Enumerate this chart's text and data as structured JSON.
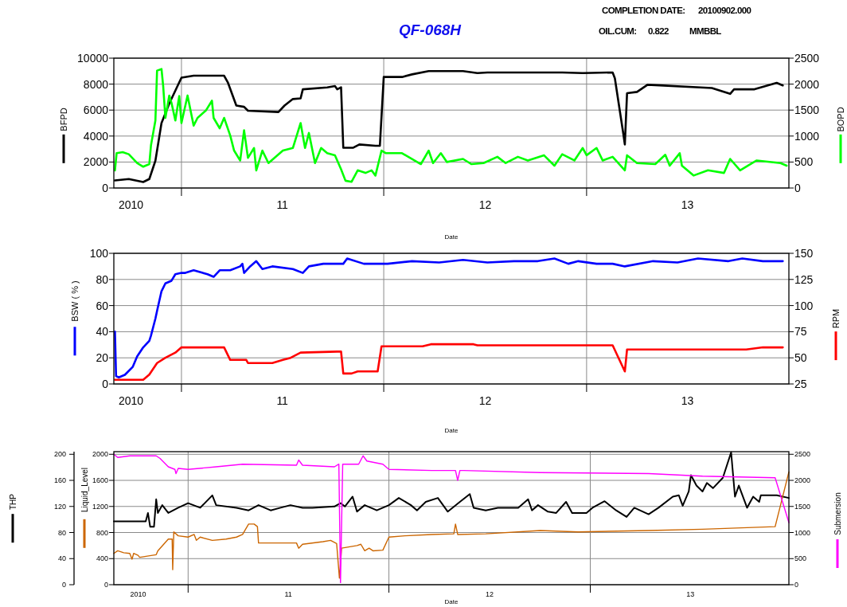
{
  "chart_data": [
    {
      "type": "line",
      "title": "QF-068H",
      "annotations": [
        "COMPLETION DATE:",
        "20100902.000",
        "OIL.CUM:",
        "0.822",
        "MMBBL"
      ],
      "xlabel": "Date",
      "ylabel": "BFPD",
      "y2label": "BOPD",
      "xlim": [
        "2010-09-01",
        "2014-01-01"
      ],
      "xticks": [
        {
          "value": "2010-10-02",
          "label": "2010"
        },
        {
          "value": "2011-01-01",
          "label": null
        },
        {
          "value": "2011-07-02",
          "label": "11"
        },
        {
          "value": "2012-01-01",
          "label": null
        },
        {
          "value": "2012-07-02",
          "label": "12"
        },
        {
          "value": "2013-01-01",
          "label": null
        },
        {
          "value": "2013-07-02",
          "label": "13"
        }
      ],
      "ylim": [
        0,
        10000
      ],
      "yticks": [
        0,
        2000,
        4000,
        6000,
        8000,
        10000
      ],
      "y2lim": [
        0,
        2500
      ],
      "y2ticks": [
        0,
        500,
        1000,
        1500,
        2000,
        2500
      ],
      "grid": true,
      "series": [
        {
          "color": "#000000",
          "axis": "y",
          "x": [
            "2010-09-03",
            "2010-09-28",
            "2010-10-24",
            "2010-11-04",
            "2010-11-15",
            "2010-11-26",
            "2010-12-10",
            "2010-12-21",
            "2011-01-01",
            "2011-01-23",
            "2011-02-28",
            "2011-03-19",
            "2011-03-26",
            "2011-04-10",
            "2011-04-24",
            "2011-05-01",
            "2011-06-25",
            "2011-07-06",
            "2011-07-21",
            "2011-08-04",
            "2011-08-08",
            "2011-09-21",
            "2011-10-05",
            "2011-10-09",
            "2011-10-16",
            "2011-10-20",
            "2011-11-07",
            "2011-11-18",
            "2011-12-17",
            "2011-12-25",
            "2012-01-01",
            "2012-02-03",
            "2012-02-21",
            "2012-03-22",
            "2012-05-23",
            "2012-06-18",
            "2012-07-06",
            "2012-11-18",
            "2012-12-25",
            "2013-02-17",
            "2013-02-21",
            "2013-03-08",
            "2013-03-11",
            "2013-03-15",
            "2013-04-02",
            "2013-04-21",
            "2013-08-15",
            "2013-09-17",
            "2013-09-24",
            "2013-10-31",
            "2013-12-10",
            "2013-12-21"
          ],
          "values": [
            580,
            690,
            460,
            690,
            2100,
            5000,
            6500,
            7500,
            8500,
            8650,
            8650,
            8650,
            8100,
            6350,
            6250,
            5950,
            5850,
            6350,
            6850,
            6900,
            7600,
            7750,
            7850,
            7600,
            7750,
            3100,
            3100,
            3350,
            3250,
            3250,
            8550,
            8550,
            8750,
            9000,
            9000,
            8850,
            8900,
            8900,
            8850,
            8900,
            8450,
            4250,
            3350,
            7300,
            7400,
            7950,
            7700,
            7250,
            7600,
            7600,
            8100,
            7900
          ]
        },
        {
          "color": "#00ff00",
          "axis": "y2",
          "x": [
            "2010-09-03",
            "2010-09-06",
            "2010-09-17",
            "2010-09-28",
            "2010-10-13",
            "2010-10-24",
            "2010-11-04",
            "2010-11-07",
            "2010-11-15",
            "2010-11-18",
            "2010-11-26",
            "2010-11-29",
            "2010-12-03",
            "2010-12-10",
            "2010-12-14",
            "2010-12-21",
            "2010-12-28",
            "2011-01-01",
            "2011-01-12",
            "2011-01-23",
            "2011-01-30",
            "2011-02-14",
            "2011-02-25",
            "2011-02-28",
            "2011-03-11",
            "2011-03-19",
            "2011-03-30",
            "2011-04-06",
            "2011-04-17",
            "2011-04-24",
            "2011-05-01",
            "2011-05-12",
            "2011-05-16",
            "2011-05-27",
            "2011-06-07",
            "2011-07-03",
            "2011-07-21",
            "2011-08-04",
            "2011-08-12",
            "2011-08-19",
            "2011-08-30",
            "2011-09-10",
            "2011-09-21",
            "2011-10-05",
            "2011-10-16",
            "2011-10-24",
            "2011-11-04",
            "2011-11-15",
            "2011-11-29",
            "2011-12-10",
            "2011-12-17",
            "2011-12-28",
            "2012-01-05",
            "2012-02-03",
            "2012-03-08",
            "2012-03-22",
            "2012-03-30",
            "2012-04-13",
            "2012-04-24",
            "2012-05-23",
            "2012-06-07",
            "2012-06-29",
            "2012-07-24",
            "2012-08-08",
            "2012-08-30",
            "2012-09-17",
            "2012-10-16",
            "2012-11-04",
            "2012-11-18",
            "2012-12-10",
            "2012-12-25",
            "2013-01-01",
            "2013-01-19",
            "2013-01-30",
            "2013-02-17",
            "2013-03-11",
            "2013-03-15",
            "2013-04-02",
            "2013-05-05",
            "2013-05-23",
            "2013-05-31",
            "2013-06-18",
            "2013-06-22",
            "2013-07-13",
            "2013-08-08",
            "2013-09-06",
            "2013-09-17",
            "2013-10-05",
            "2013-10-27",
            "2013-11-04",
            "2013-12-17",
            "2013-12-28"
          ],
          "values": [
            340,
            670,
            690,
            650,
            480,
            410,
            460,
            820,
            1300,
            2260,
            2290,
            1970,
            1350,
            1780,
            1640,
            1300,
            1770,
            1250,
            1780,
            1200,
            1350,
            1490,
            1680,
            1350,
            1150,
            1350,
            1010,
            720,
            530,
            1110,
            580,
            770,
            340,
            720,
            480,
            720,
            770,
            1250,
            770,
            1060,
            480,
            770,
            670,
            630,
            360,
            140,
            120,
            340,
            290,
            340,
            240,
            720,
            670,
            670,
            460,
            720,
            480,
            670,
            500,
            560,
            460,
            480,
            600,
            480,
            600,
            530,
            630,
            430,
            650,
            530,
            770,
            630,
            770,
            530,
            600,
            340,
            630,
            480,
            460,
            640,
            430,
            670,
            430,
            240,
            340,
            290,
            560,
            340,
            480,
            530,
            480,
            430
          ]
        }
      ]
    },
    {
      "type": "line",
      "xlabel": "Date",
      "ylabel": "BSW ( % )",
      "y2label": "RPM",
      "xlim": [
        "2010-09-01",
        "2014-01-01"
      ],
      "xticks": [
        {
          "value": "2010-10-02",
          "label": "2010"
        },
        {
          "value": "2011-01-01",
          "label": null
        },
        {
          "value": "2011-07-02",
          "label": "11"
        },
        {
          "value": "2012-01-01",
          "label": null
        },
        {
          "value": "2012-07-02",
          "label": "12"
        },
        {
          "value": "2013-01-01",
          "label": null
        },
        {
          "value": "2013-07-02",
          "label": "13"
        }
      ],
      "ylim": [
        0,
        100
      ],
      "yticks": [
        0,
        20,
        40,
        60,
        80,
        100
      ],
      "y2lim": [
        25,
        150
      ],
      "y2ticks": [
        25,
        50,
        75,
        100,
        125,
        150
      ],
      "grid": true,
      "series": [
        {
          "color": "#0000ff",
          "axis": "y",
          "x": [
            "2010-09-03",
            "2010-09-05",
            "2010-09-10",
            "2010-09-21",
            "2010-10-05",
            "2010-10-13",
            "2010-10-24",
            "2010-11-04",
            "2010-11-07",
            "2010-11-15",
            "2010-11-18",
            "2010-11-26",
            "2010-12-03",
            "2010-12-14",
            "2010-12-21",
            "2011-01-01",
            "2011-01-08",
            "2011-01-23",
            "2011-02-17",
            "2011-02-28",
            "2011-03-11",
            "2011-03-30",
            "2011-04-17",
            "2011-04-21",
            "2011-04-24",
            "2011-05-05",
            "2011-05-16",
            "2011-05-27",
            "2011-06-14",
            "2011-07-21",
            "2011-08-08",
            "2011-08-19",
            "2011-09-14",
            "2011-10-20",
            "2011-10-27",
            "2011-11-26",
            "2012-01-08",
            "2012-02-21",
            "2012-04-10",
            "2012-05-23",
            "2012-07-06",
            "2012-08-23",
            "2012-10-05",
            "2012-11-04",
            "2012-11-29",
            "2012-12-17",
            "2013-01-19",
            "2013-02-17",
            "2013-03-11",
            "2013-05-01",
            "2013-06-14",
            "2013-07-21",
            "2013-09-14",
            "2013-10-09",
            "2013-11-15",
            "2013-12-21"
          ],
          "values": [
            40,
            6,
            5,
            7,
            13,
            21,
            28,
            33,
            37,
            50,
            56,
            71,
            77,
            79,
            84,
            85,
            85,
            87,
            84,
            82,
            87,
            87,
            90,
            92,
            85,
            90,
            94,
            88,
            90,
            88,
            85,
            90,
            92,
            92,
            96,
            92,
            92,
            94,
            93,
            95,
            93,
            94,
            94,
            96,
            92,
            94,
            92,
            92,
            90,
            94,
            93,
            96,
            94,
            96,
            94,
            94
          ]
        },
        {
          "color": "#ff0000",
          "axis": "y2",
          "x": [
            "2010-09-03",
            "2010-10-24",
            "2010-11-04",
            "2010-11-18",
            "2010-12-03",
            "2010-12-21",
            "2011-01-01",
            "2011-03-19",
            "2011-03-30",
            "2011-04-28",
            "2011-05-01",
            "2011-06-14",
            "2011-07-03",
            "2011-07-17",
            "2011-08-04",
            "2011-10-09",
            "2011-10-16",
            "2011-10-20",
            "2011-11-04",
            "2011-11-15",
            "2011-12-21",
            "2011-12-28",
            "2012-03-11",
            "2012-03-26",
            "2012-06-11",
            "2012-06-18",
            "2013-02-17",
            "2013-03-11",
            "2013-03-15",
            "2013-10-16",
            "2013-11-15",
            "2013-12-21"
          ],
          "values": [
            29,
            29,
            34,
            45,
            50,
            55,
            60,
            60,
            48,
            48,
            45,
            45,
            48,
            50,
            55,
            56,
            56,
            35,
            35,
            37,
            37,
            61,
            61,
            63,
            63,
            62,
            62,
            37,
            58,
            58,
            60,
            60
          ]
        }
      ]
    },
    {
      "type": "line",
      "xlabel": "Date",
      "ylabel": "Liquid_Level",
      "y2label": "Submersion",
      "y3label": "THP",
      "xlim": [
        "2010-08-19",
        "2013-12-28"
      ],
      "xticks": [
        {
          "value": "2010-10-02",
          "label": "2010"
        },
        {
          "value": "2011-01-01",
          "label": null
        },
        {
          "value": "2011-07-02",
          "label": "11"
        },
        {
          "value": "2012-01-01",
          "label": null
        },
        {
          "value": "2012-07-02",
          "label": "12"
        },
        {
          "value": "2013-01-01",
          "label": null
        },
        {
          "value": "2013-07-02",
          "label": "13"
        }
      ],
      "ylim": [
        0,
        2040
      ],
      "yticks": [
        0,
        400,
        800,
        1200,
        1600,
        2000
      ],
      "y2lim": [
        0,
        2550
      ],
      "y2ticks": [
        0,
        500,
        1000,
        1500,
        2000,
        2500
      ],
      "y3lim": [
        0,
        204
      ],
      "y3ticks": [
        0,
        40,
        80,
        120,
        160,
        200
      ],
      "grid": true,
      "series": [
        {
          "color": "#000000",
          "axis": "y3",
          "x": [
            "2010-08-19",
            "2010-09-17",
            "2010-10-16",
            "2010-10-20",
            "2010-10-24",
            "2010-10-31",
            "2010-11-04",
            "2010-11-07",
            "2010-11-15",
            "2010-11-26",
            "2010-12-14",
            "2011-01-01",
            "2011-01-23",
            "2011-02-14",
            "2011-02-21",
            "2011-03-30",
            "2011-04-21",
            "2011-05-09",
            "2011-05-31",
            "2011-06-18",
            "2011-07-06",
            "2011-07-28",
            "2011-08-15",
            "2011-09-24",
            "2011-10-05",
            "2011-10-13",
            "2011-10-27",
            "2011-11-04",
            "2011-11-18",
            "2011-12-10",
            "2012-01-01",
            "2012-01-19",
            "2012-02-10",
            "2012-02-21",
            "2012-03-08",
            "2012-03-30",
            "2012-04-17",
            "2012-05-09",
            "2012-05-27",
            "2012-06-03",
            "2012-06-25",
            "2012-07-17",
            "2012-08-23",
            "2012-09-10",
            "2012-09-17",
            "2012-09-28",
            "2012-10-16",
            "2012-10-31",
            "2012-11-18",
            "2012-11-29",
            "2012-12-25",
            "2013-01-05",
            "2013-01-27",
            "2013-02-17",
            "2013-03-08",
            "2013-03-22",
            "2013-04-17",
            "2013-05-05",
            "2013-05-31",
            "2013-06-11",
            "2013-06-18",
            "2013-06-29",
            "2013-07-03",
            "2013-07-13",
            "2013-07-24",
            "2013-08-01",
            "2013-08-12",
            "2013-08-30",
            "2013-09-14",
            "2013-09-21",
            "2013-09-28",
            "2013-10-13",
            "2013-10-24",
            "2013-11-04",
            "2013-11-07",
            "2013-12-06",
            "2013-12-28"
          ],
          "values": [
            97,
            97,
            97,
            110,
            89,
            89,
            131,
            110,
            122,
            110,
            118,
            125,
            118,
            137,
            122,
            118,
            114,
            122,
            114,
            118,
            122,
            118,
            118,
            120,
            125,
            120,
            135,
            112,
            122,
            114,
            122,
            133,
            122,
            114,
            127,
            133,
            112,
            127,
            139,
            118,
            114,
            118,
            118,
            131,
            114,
            122,
            112,
            110,
            127,
            110,
            110,
            118,
            128,
            114,
            104,
            118,
            108,
            118,
            135,
            137,
            121,
            143,
            168,
            152,
            143,
            156,
            148,
            164,
            203,
            135,
            152,
            118,
            135,
            127,
            137,
            137,
            133
          ]
        },
        {
          "color": "#cc6600",
          "axis": "y",
          "x": [
            "2010-08-19",
            "2010-08-26",
            "2010-09-06",
            "2010-09-17",
            "2010-09-21",
            "2010-09-24",
            "2010-10-02",
            "2010-10-05",
            "2010-11-04",
            "2010-11-07",
            "2010-11-26",
            "2010-12-03",
            "2010-12-04",
            "2010-12-06",
            "2010-12-14",
            "2011-01-01",
            "2011-01-12",
            "2011-01-16",
            "2011-01-23",
            "2011-02-14",
            "2011-03-11",
            "2011-03-30",
            "2011-04-10",
            "2011-04-21",
            "2011-05-01",
            "2011-05-07",
            "2011-05-09",
            "2011-06-18",
            "2011-07-17",
            "2011-07-21",
            "2011-07-28",
            "2011-09-03",
            "2011-09-17",
            "2011-09-28",
            "2011-10-03",
            "2011-10-07",
            "2011-11-04",
            "2011-11-11",
            "2011-11-18",
            "2011-11-26",
            "2011-12-03",
            "2011-12-21",
            "2012-01-01",
            "2012-01-30",
            "2012-03-19",
            "2012-04-28",
            "2012-05-01",
            "2012-05-05",
            "2012-06-25",
            "2012-10-02",
            "2012-12-10",
            "2013-04-17",
            "2013-07-24",
            "2013-12-03",
            "2013-12-28"
          ],
          "values": [
            480,
            520,
            490,
            480,
            390,
            480,
            450,
            420,
            460,
            520,
            700,
            700,
            230,
            810,
            750,
            730,
            770,
            680,
            730,
            680,
            700,
            730,
            770,
            930,
            930,
            890,
            640,
            640,
            640,
            560,
            620,
            660,
            680,
            630,
            100,
            560,
            600,
            620,
            520,
            560,
            520,
            530,
            730,
            750,
            770,
            780,
            930,
            770,
            780,
            830,
            810,
            830,
            850,
            890,
            1730
          ]
        },
        {
          "color": "#ff00ff",
          "axis": "y2",
          "x": [
            "2010-08-19",
            "2010-08-26",
            "2010-09-17",
            "2010-11-04",
            "2010-11-11",
            "2010-11-26",
            "2010-12-08",
            "2010-12-10",
            "2010-12-14",
            "2011-01-01",
            "2011-02-21",
            "2011-04-10",
            "2011-07-17",
            "2011-07-21",
            "2011-07-28",
            "2011-09-24",
            "2011-10-02",
            "2011-10-05",
            "2011-10-09",
            "2011-11-07",
            "2011-11-15",
            "2011-11-22",
            "2011-12-21",
            "2012-01-01",
            "2012-03-19",
            "2012-05-01",
            "2012-05-05",
            "2012-05-09",
            "2012-05-16",
            "2012-10-02",
            "2013-04-17",
            "2013-07-24",
            "2013-12-03",
            "2013-12-28"
          ],
          "values": [
            2500,
            2440,
            2470,
            2470,
            2420,
            2260,
            2210,
            2130,
            2230,
            2210,
            2260,
            2310,
            2290,
            2390,
            2290,
            2260,
            2310,
            40,
            2310,
            2310,
            2470,
            2370,
            2310,
            2210,
            2190,
            2190,
            2000,
            2190,
            2190,
            2150,
            2130,
            2080,
            2050,
            1190
          ]
        }
      ]
    }
  ]
}
